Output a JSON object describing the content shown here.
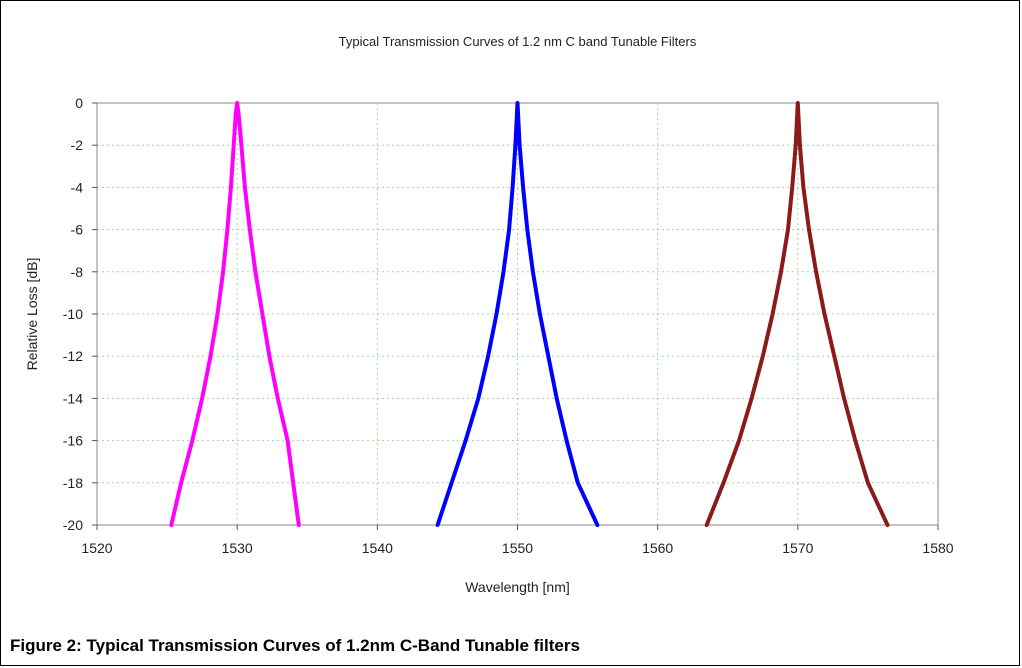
{
  "caption": "Figure 2:  Typical Transmission Curves of 1.2nm C-Band Tunable filters",
  "chart_data": {
    "type": "line",
    "title": "Typical Transmission Curves of 1.2 nm C band Tunable Filters",
    "xlabel": "Wavelength [nm]",
    "ylabel": "Relative Loss [dB]",
    "xlim": [
      1520,
      1580
    ],
    "ylim": [
      -20,
      0
    ],
    "xticks": [
      1520,
      1530,
      1540,
      1550,
      1560,
      1570,
      1580
    ],
    "yticks": [
      0,
      -2,
      -4,
      -6,
      -8,
      -10,
      -12,
      -14,
      -16,
      -18,
      -20
    ],
    "grid": true,
    "legend": "none",
    "series": [
      {
        "color": "#ff00ff",
        "x": [
          1525.3,
          1526.0,
          1526.8,
          1527.5,
          1528.1,
          1528.6,
          1529.0,
          1529.3,
          1529.55,
          1529.75,
          1529.9,
          1530.0,
          1530.1,
          1530.3,
          1530.55,
          1530.9,
          1531.3,
          1531.8,
          1532.3,
          1532.9,
          1533.6,
          1534.4
        ],
        "y": [
          -20,
          -18,
          -16,
          -14,
          -12,
          -10,
          -8,
          -6,
          -4,
          -2,
          -0.5,
          0,
          -0.5,
          -2,
          -4,
          -6,
          -8,
          -10,
          -12,
          -14,
          -16,
          -20
        ]
      },
      {
        "color": "#0000ff",
        "x": [
          1544.3,
          1545.3,
          1546.3,
          1547.2,
          1547.9,
          1548.5,
          1549.0,
          1549.4,
          1549.65,
          1549.85,
          1550.0,
          1550.15,
          1550.4,
          1550.7,
          1551.1,
          1551.6,
          1552.2,
          1552.8,
          1553.5,
          1554.3,
          1555.7
        ],
        "y": [
          -20,
          -18,
          -16,
          -14,
          -12,
          -10,
          -8,
          -6,
          -4,
          -2,
          0,
          -2,
          -4,
          -6,
          -8,
          -10,
          -12,
          -14,
          -16,
          -18,
          -20
        ]
      },
      {
        "color": "#8b1a1a",
        "x": [
          1563.5,
          1564.7,
          1565.8,
          1566.7,
          1567.5,
          1568.2,
          1568.8,
          1569.3,
          1569.6,
          1569.85,
          1570.0,
          1570.15,
          1570.4,
          1570.8,
          1571.3,
          1571.9,
          1572.6,
          1573.3,
          1574.1,
          1575.0,
          1576.4
        ],
        "y": [
          -20,
          -18,
          -16,
          -14,
          -12,
          -10,
          -8,
          -6,
          -4,
          -2,
          0,
          -2,
          -4,
          -6,
          -8,
          -10,
          -12,
          -14,
          -16,
          -18,
          -20
        ]
      }
    ]
  }
}
